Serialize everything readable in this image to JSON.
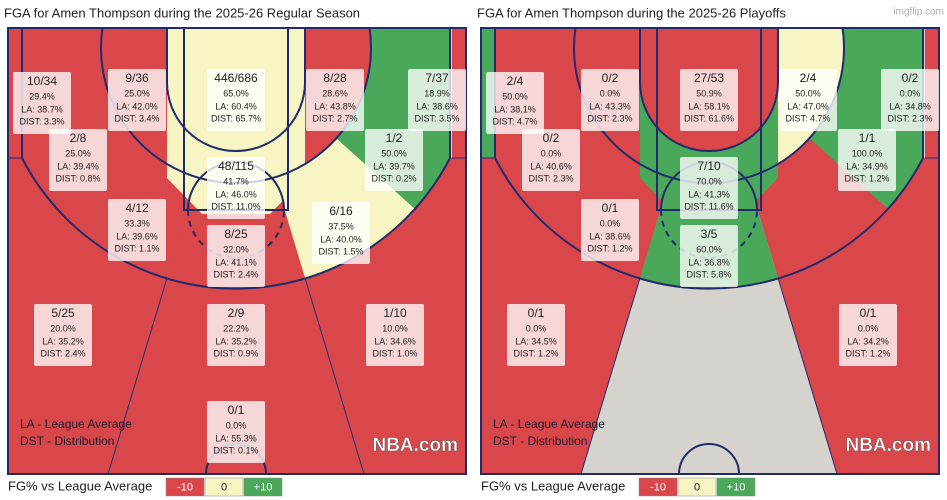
{
  "watermark": "imgflip.com",
  "panels": [
    {
      "title": "FGA for Amen Thompson during the 2025-26 Regular Season",
      "footnotes": [
        "LA - League Average",
        "DST - Distribution"
      ],
      "logo": "NBA.com",
      "legend": {
        "title": "FG% vs League Average",
        "items": [
          {
            "label": "-10",
            "color": "#d9474b"
          },
          {
            "label": "0",
            "color": "#f7f5c3"
          },
          {
            "label": "+10",
            "color": "#4aa85a"
          }
        ]
      },
      "zones": {
        "corner_left": {
          "shots": "10/34",
          "pct": "29.4%",
          "la": "LA: 38.7%",
          "dist": "DIST: 3.3%",
          "color": "#d9474b"
        },
        "inner_left": {
          "shots": "9/36",
          "pct": "25.0%",
          "la": "LA: 42.0%",
          "dist": "DIST: 3.4%",
          "color": "#d9474b"
        },
        "ra": {
          "shots": "446/686",
          "pct": "65.0%",
          "la": "LA: 60.4%",
          "dist": "DIST: 65.7%",
          "color": "#f7f5c3"
        },
        "inner_right": {
          "shots": "8/28",
          "pct": "28.6%",
          "la": "LA: 43.8%",
          "dist": "DIST: 2.7%",
          "color": "#d9474b"
        },
        "corner_right": {
          "shots": "7/37",
          "pct": "18.9%",
          "la": "LA: 38.6%",
          "dist": "DIST: 3.5%",
          "color": "#d9474b"
        },
        "mid_left_baseline": {
          "shots": "2/8",
          "pct": "25.0%",
          "la": "LA: 39.4%",
          "dist": "DIST: 0.8%",
          "color": "#d9474b"
        },
        "mid_right_baseline": {
          "shots": "1/2",
          "pct": "50.0%",
          "la": "LA: 39.7%",
          "dist": "DIST: 0.2%",
          "color": "#4aa85a"
        },
        "paint": {
          "shots": "48/115",
          "pct": "41.7%",
          "la": "LA: 46.0%",
          "dist": "DIST: 11.0%",
          "color": "#f7f5c3"
        },
        "mid_left_wing": {
          "shots": "4/12",
          "pct": "33.3%",
          "la": "LA: 39.6%",
          "dist": "DIST: 1.1%",
          "color": "#d9474b"
        },
        "mid_right_wing": {
          "shots": "6/16",
          "pct": "37.5%",
          "la": "LA: 40.0%",
          "dist": "DIST: 1.5%",
          "color": "#f7f5c3"
        },
        "mid_center": {
          "shots": "8/25",
          "pct": "32.0%",
          "la": "LA: 41.1%",
          "dist": "DIST: 2.4%",
          "color": "#d9474b"
        },
        "three_left_wing": {
          "shots": "5/25",
          "pct": "20.0%",
          "la": "LA: 35.2%",
          "dist": "DIST: 2.4%",
          "color": "#d9474b"
        },
        "three_center": {
          "shots": "2/9",
          "pct": "22.2%",
          "la": "LA: 35.2%",
          "dist": "DIST: 0.9%",
          "color": "#d9474b"
        },
        "three_right_wing": {
          "shots": "1/10",
          "pct": "10.0%",
          "la": "LA: 34.6%",
          "dist": "DIST: 1.0%",
          "color": "#d9474b"
        },
        "backcourt": {
          "shots": "0/1",
          "pct": "0.0%",
          "la": "LA: 55.3%",
          "dist": "DIST: 0.1%",
          "color": "#d9474b"
        }
      }
    },
    {
      "title": "FGA for Amen Thompson during the 2025-26 Playoffs",
      "footnotes": [
        "LA - League Average",
        "DST - Distribution"
      ],
      "logo": "NBA.com",
      "legend": {
        "title": "FG% vs League Average",
        "items": [
          {
            "label": "-10",
            "color": "#d9474b"
          },
          {
            "label": "0",
            "color": "#f7f5c3"
          },
          {
            "label": "+10",
            "color": "#4aa85a"
          }
        ]
      },
      "zones": {
        "corner_left": {
          "shots": "2/4",
          "pct": "50.0%",
          "la": "LA: 38.1%",
          "dist": "DIST: 4.7%",
          "color": "#4aa85a"
        },
        "inner_left": {
          "shots": "0/2",
          "pct": "0.0%",
          "la": "LA: 43.3%",
          "dist": "DIST: 2.3%",
          "color": "#d9474b"
        },
        "ra": {
          "shots": "27/53",
          "pct": "50.9%",
          "la": "LA: 58.1%",
          "dist": "DIST: 61.6%",
          "color": "#d9474b"
        },
        "inner_right": {
          "shots": "2/4",
          "pct": "50.0%",
          "la": "LA: 47.0%",
          "dist": "DIST: 4.7%",
          "color": "#f7f5c3"
        },
        "corner_right": {
          "shots": "0/2",
          "pct": "0.0%",
          "la": "LA: 34.8%",
          "dist": "DIST: 2.3%",
          "color": "#d9474b"
        },
        "mid_left_baseline": {
          "shots": "0/2",
          "pct": "0.0%",
          "la": "LA: 40.6%",
          "dist": "DIST: 2.3%",
          "color": "#d9474b"
        },
        "mid_right_baseline": {
          "shots": "1/1",
          "pct": "100.0%",
          "la": "LA: 34.9%",
          "dist": "DIST: 1.2%",
          "color": "#4aa85a"
        },
        "paint": {
          "shots": "7/10",
          "pct": "70.0%",
          "la": "LA: 41.3%",
          "dist": "DIST: 11.6%",
          "color": "#4aa85a"
        },
        "mid_left_wing": {
          "shots": "0/1",
          "pct": "0.0%",
          "la": "LA: 38.6%",
          "dist": "DIST: 1.2%",
          "color": "#d9474b"
        },
        "mid_center": {
          "shots": "3/5",
          "pct": "60.0%",
          "la": "LA: 36.8%",
          "dist": "DIST: 5.8%",
          "color": "#4aa85a"
        },
        "three_left_wing": {
          "shots": "0/1",
          "pct": "0.0%",
          "la": "LA: 34.5%",
          "dist": "DIST: 1.2%",
          "color": "#d9474b"
        },
        "three_right_wing": {
          "shots": "0/1",
          "pct": "0.0%",
          "la": "LA: 34.2%",
          "dist": "DIST: 1.2%",
          "color": "#d9474b"
        }
      }
    }
  ]
}
